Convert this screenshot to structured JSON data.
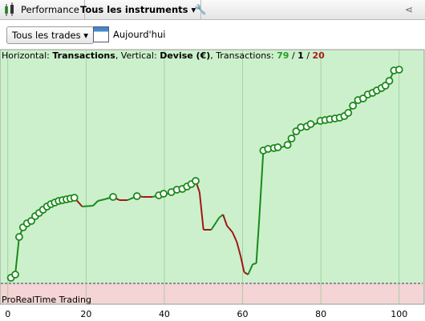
{
  "toolbar": {
    "tab": "Performance",
    "instruments": "Tous les instruments"
  },
  "filters": {
    "trades": "Tous les trades",
    "date": "Aujourd'hui"
  },
  "chart_data": {
    "type": "line",
    "header": {
      "horizontal": "Horizontal:",
      "x_label": "Transactions",
      "vertical": ", Vertical:",
      "y_label": "Devise (€)",
      "count_label": ", Transactions:",
      "winners": 79,
      "sep1": "/",
      "neutral": 1,
      "sep2": "/",
      "losers": 20
    },
    "footer": "ProRealTime Trading",
    "x": [
      0.8,
      1.9,
      2.9,
      3.9,
      4.9,
      6,
      7,
      8,
      9,
      10,
      11,
      12,
      13,
      14,
      15,
      16,
      17,
      19,
      21.8,
      23,
      24.7,
      26.9,
      28.5,
      30.6,
      33,
      34.6,
      35.8,
      37,
      38.6,
      39.8,
      40.8,
      41.8,
      43.2,
      44.6,
      45.8,
      46.9,
      48,
      49,
      50,
      52,
      54,
      55,
      56,
      57.4,
      58.5,
      59.5,
      60.4,
      61.4,
      62.6,
      63.5,
      64.3,
      65.3,
      66.5,
      68,
      69,
      70,
      71.5,
      72.5,
      73.7,
      74.9,
      76.4,
      77.4,
      78.6,
      79.9,
      81.1,
      82.3,
      83.6,
      84.8,
      86,
      87,
      88.2,
      89.5,
      90.8,
      92,
      93.2,
      94.3,
      95.5,
      96.5,
      97.5,
      98.7,
      100
    ],
    "values": [
      7,
      11,
      58,
      70,
      75,
      78,
      84,
      88,
      92,
      96,
      99,
      101,
      103,
      104,
      105,
      106,
      107,
      96,
      97,
      103,
      105,
      108,
      104,
      104,
      109,
      108,
      108,
      108,
      110,
      112,
      112,
      114,
      117,
      118,
      121,
      124,
      128,
      114,
      67,
      67,
      82,
      86,
      72,
      64,
      52,
      34,
      14,
      11,
      24,
      25,
      84,
      166,
      168,
      169,
      170,
      170,
      173,
      181,
      190,
      195,
      196,
      199,
      199,
      203,
      204,
      205,
      206,
      207,
      209,
      213,
      222,
      229,
      231,
      236,
      238,
      241,
      244,
      247,
      253,
      266,
      267
    ],
    "xlim": [
      -2,
      106
    ],
    "xticks": [
      0,
      20,
      40,
      60,
      80,
      100
    ],
    "ylim": [
      -26,
      292
    ],
    "up_color": "#1a8a1a",
    "down_color": "#a01818",
    "grid": true
  }
}
